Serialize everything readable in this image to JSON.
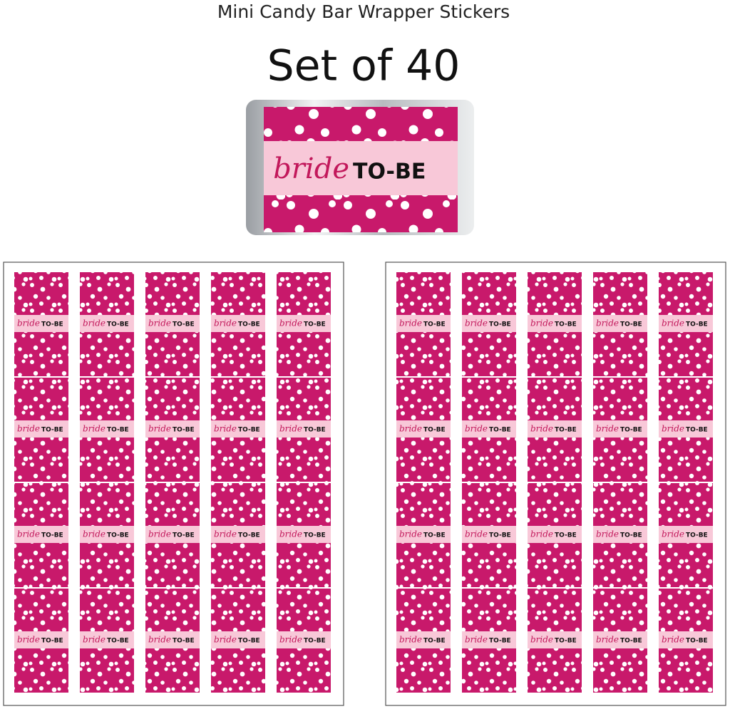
{
  "header": {
    "title": "Mini Candy Bar Wrapper Stickers",
    "subtitle": "Set of 40"
  },
  "sample": {
    "script": "bride",
    "text": "TO-BE"
  },
  "sticker": {
    "script": "bride",
    "text": "TO-BE"
  }
}
